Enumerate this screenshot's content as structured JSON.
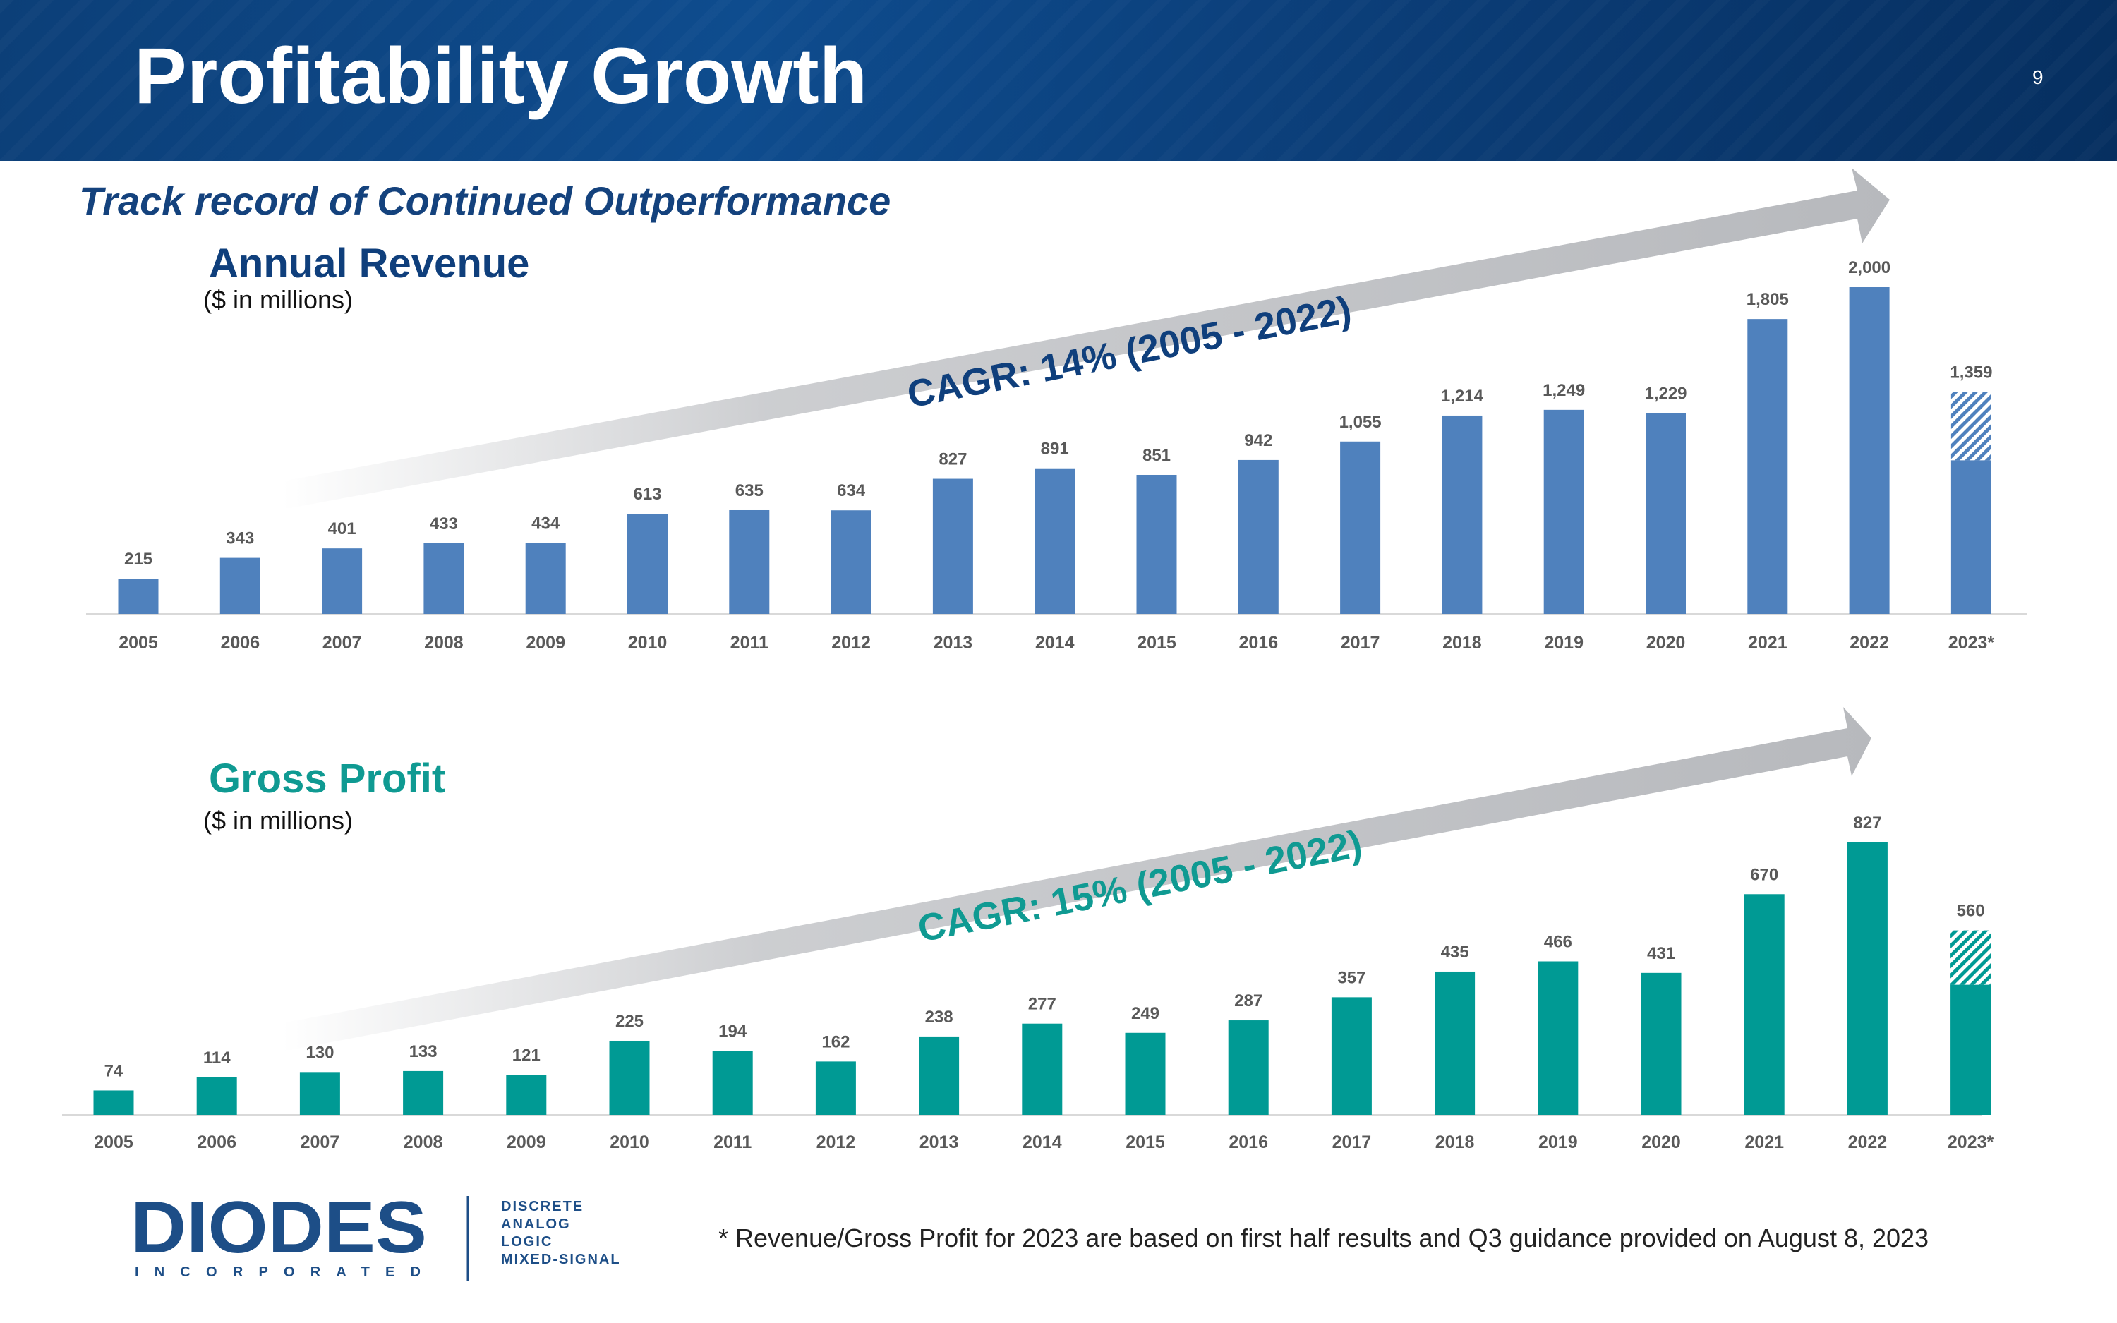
{
  "slide": {
    "title": "Profitability Growth",
    "page_number": "9",
    "subtitle": "Track record of Continued Outperformance",
    "footnote": "* Revenue/Gross Profit for 2023 are based on  first half results and Q3 guidance provided on August 8, 2023"
  },
  "logo": {
    "name": "DIODES",
    "sub": "INCORPORATED",
    "tags": [
      "DISCRETE",
      "ANALOG",
      "LOGIC",
      "MIXED-SIGNAL"
    ]
  },
  "colors": {
    "header": "#0c3f78",
    "revenue_bar": "#4f81bd",
    "profit_bar": "#009a94",
    "revenue_title": "#0f3f7c",
    "profit_title": "#0f9a92",
    "arrow": "#b7b9bd",
    "label": "#595959"
  },
  "chart_data": [
    {
      "type": "bar",
      "title": "Annual Revenue",
      "units": "($ in millions)",
      "cagr": "CAGR: 14% (2005 - 2022)",
      "categories": [
        "2005",
        "2006",
        "2007",
        "2008",
        "2009",
        "2010",
        "2011",
        "2012",
        "2013",
        "2014",
        "2015",
        "2016",
        "2017",
        "2018",
        "2019",
        "2020",
        "2021",
        "2022",
        "2023*"
      ],
      "values": [
        215,
        343,
        401,
        433,
        434,
        613,
        635,
        634,
        827,
        891,
        851,
        942,
        1055,
        1214,
        1249,
        1229,
        1805,
        2000,
        1359
      ],
      "labels": [
        "215",
        "343",
        "401",
        "433",
        "434",
        "613",
        "635",
        "634",
        "827",
        "891",
        "851",
        "942",
        "1,055",
        "1,214",
        "1,249",
        "1,229",
        "1,805",
        "2,000",
        "1,359"
      ],
      "ylim": [
        0,
        2000
      ],
      "projected": {
        "category": "2023*",
        "solid_value": 940,
        "note": "hatched portion represents Q3 guidance"
      }
    },
    {
      "type": "bar",
      "title": "Gross Profit",
      "units": "($ in millions)",
      "cagr": "CAGR: 15% (2005 - 2022)",
      "categories": [
        "2005",
        "2006",
        "2007",
        "2008",
        "2009",
        "2010",
        "2011",
        "2012",
        "2013",
        "2014",
        "2015",
        "2016",
        "2017",
        "2018",
        "2019",
        "2020",
        "2021",
        "2022",
        "2023*"
      ],
      "values": [
        74,
        114,
        130,
        133,
        121,
        225,
        194,
        162,
        238,
        277,
        249,
        287,
        357,
        435,
        466,
        431,
        670,
        827,
        560
      ],
      "labels": [
        "74",
        "114",
        "130",
        "133",
        "121",
        "225",
        "194",
        "162",
        "238",
        "277",
        "249",
        "287",
        "357",
        "435",
        "466",
        "431",
        "670",
        "827",
        "560"
      ],
      "ylim": [
        0,
        827
      ],
      "projected": {
        "category": "2023*",
        "solid_value": 395,
        "note": "hatched portion represents Q3 guidance"
      }
    }
  ]
}
